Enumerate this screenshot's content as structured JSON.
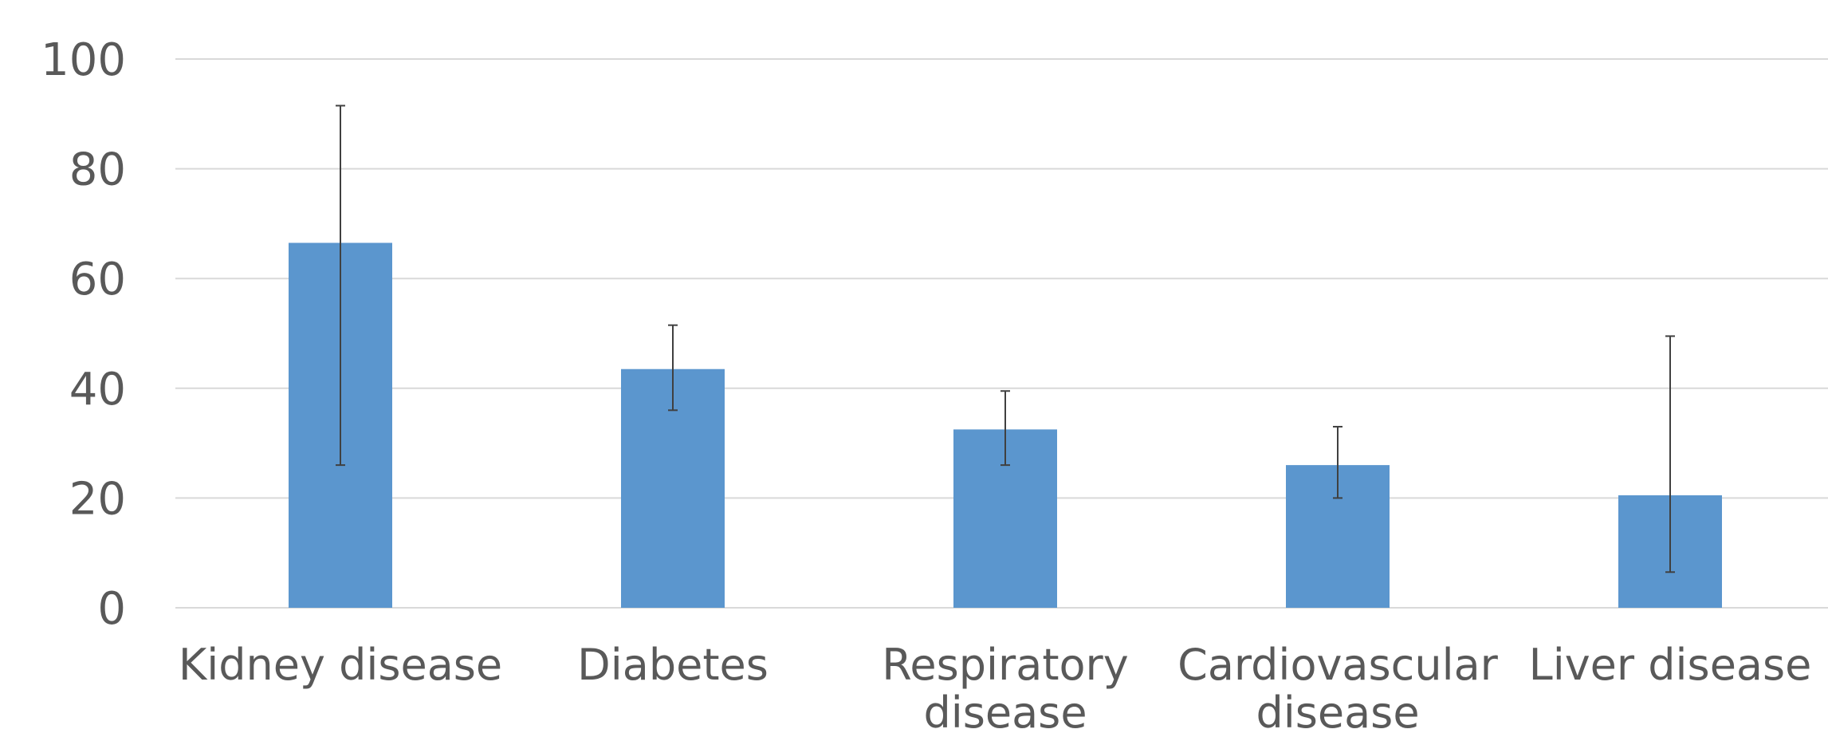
{
  "chart_data": {
    "type": "bar",
    "title": "",
    "xlabel": "",
    "ylabel": "",
    "ylim": [
      0,
      100
    ],
    "yticks": [
      0,
      20,
      40,
      60,
      80,
      100
    ],
    "grid": true,
    "legend": "none",
    "bar_color": "#5B96CE",
    "errorbar_color": "#404040",
    "grid_color": "#D9D9D9",
    "categories": [
      [
        "Kidney disease"
      ],
      [
        "Diabetes"
      ],
      [
        "Respiratory",
        "disease"
      ],
      [
        "Cardiovascular",
        "disease"
      ],
      [
        "Liver disease"
      ]
    ],
    "values": [
      66.5,
      43.5,
      32.5,
      26,
      20.5
    ],
    "error_low": [
      26,
      36,
      26,
      20,
      6.5
    ],
    "error_high": [
      91.5,
      51.5,
      39.5,
      33,
      49.5
    ]
  }
}
